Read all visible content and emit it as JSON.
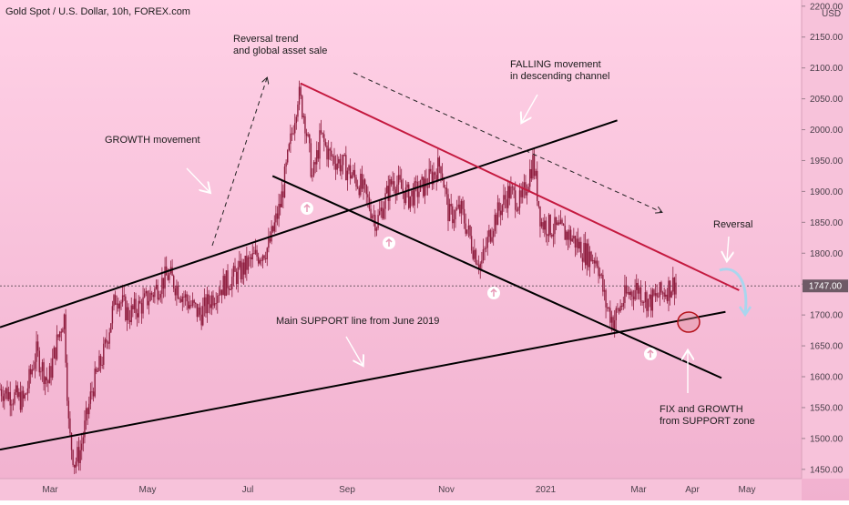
{
  "header": {
    "symbol_title": "Gold Spot / U.S. Dollar, 10h, FOREX.com"
  },
  "colors": {
    "background_top": "#ffd1e6",
    "background_bottom": "#f1b1cf",
    "candle": "#8e1d3e",
    "channel_top_line": "#c4193f",
    "trend_line": "#000000",
    "support_marker_fill": "#ffffff"
  },
  "chart_data": {
    "type": "candlestick",
    "title": "Gold Spot / U.S. Dollar, 10h, FOREX.com",
    "y_axis": {
      "unit": "USD",
      "ticks": [
        2200,
        2150,
        2100,
        2050,
        2000,
        1950,
        1900,
        1850,
        1800,
        1750,
        1700,
        1650,
        1600,
        1550,
        1500,
        1450
      ],
      "tick_labels": [
        "2200.00",
        "2150.00",
        "2100.00",
        "2050.00",
        "2000.00",
        "1950.00",
        "1900.00",
        "1850.00",
        "1800.00",
        "1750.00",
        "1700.00",
        "1650.00",
        "1600.00",
        "1550.00",
        "1500.00",
        "1450.00"
      ],
      "ylim": [
        1435,
        2210
      ],
      "current_price_level": 1747
    },
    "x_axis": {
      "labels": [
        "Mar",
        "May",
        "Jul",
        "Sep",
        "Nov",
        "2021",
        "Mar",
        "Apr",
        "May"
      ]
    },
    "price_path": [
      [
        0.0,
        1580
      ],
      [
        0.03,
        1560
      ],
      [
        0.045,
        1640
      ],
      [
        0.06,
        1590
      ],
      [
        0.07,
        1650
      ],
      [
        0.08,
        1700
      ],
      [
        0.086,
        1510
      ],
      [
        0.093,
        1460
      ],
      [
        0.1,
        1480
      ],
      [
        0.115,
        1580
      ],
      [
        0.13,
        1640
      ],
      [
        0.145,
        1735
      ],
      [
        0.16,
        1700
      ],
      [
        0.18,
        1720
      ],
      [
        0.21,
        1765
      ],
      [
        0.235,
        1720
      ],
      [
        0.25,
        1700
      ],
      [
        0.27,
        1740
      ],
      [
        0.3,
        1770
      ],
      [
        0.315,
        1790
      ],
      [
        0.335,
        1810
      ],
      [
        0.35,
        1880
      ],
      [
        0.36,
        1960
      ],
      [
        0.372,
        2060
      ],
      [
        0.38,
        2020
      ],
      [
        0.39,
        1920
      ],
      [
        0.4,
        1990
      ],
      [
        0.41,
        1960
      ],
      [
        0.43,
        1940
      ],
      [
        0.45,
        1910
      ],
      [
        0.47,
        1850
      ],
      [
        0.49,
        1920
      ],
      [
        0.51,
        1890
      ],
      [
        0.53,
        1910
      ],
      [
        0.55,
        1945
      ],
      [
        0.56,
        1860
      ],
      [
        0.575,
        1870
      ],
      [
        0.59,
        1810
      ],
      [
        0.6,
        1780
      ],
      [
        0.615,
        1850
      ],
      [
        0.635,
        1900
      ],
      [
        0.65,
        1880
      ],
      [
        0.665,
        1950
      ],
      [
        0.675,
        1850
      ],
      [
        0.69,
        1840
      ],
      [
        0.71,
        1830
      ],
      [
        0.73,
        1800
      ],
      [
        0.745,
        1790
      ],
      [
        0.755,
        1720
      ],
      [
        0.765,
        1690
      ],
      [
        0.78,
        1730
      ],
      [
        0.795,
        1745
      ],
      [
        0.81,
        1720
      ],
      [
        0.83,
        1740
      ],
      [
        0.845,
        1755
      ]
    ],
    "trend_lines": [
      {
        "name": "growth channel upper",
        "from": [
          0.0,
          1680
        ],
        "to": [
          0.77,
          2015
        ]
      },
      {
        "name": "descending channel top",
        "from": [
          0.375,
          2075
        ],
        "to": [
          0.922,
          1740
        ]
      },
      {
        "name": "descending channel bottom",
        "from": [
          0.34,
          1925
        ],
        "to": [
          0.9,
          1598
        ]
      },
      {
        "name": "main support",
        "from": [
          0.0,
          1482
        ],
        "to": [
          0.905,
          1705
        ]
      }
    ],
    "annotations": [
      {
        "text": "Reversal trend\nand global asset sale"
      },
      {
        "text": "FALLING movement\nin descending channel"
      },
      {
        "text": "GROWTH movement"
      },
      {
        "text": "Main SUPPORT line from June 2019"
      },
      {
        "text": "Reversal"
      },
      {
        "text": "FIX and GROWTH\nfrom SUPPORT zone"
      }
    ]
  }
}
